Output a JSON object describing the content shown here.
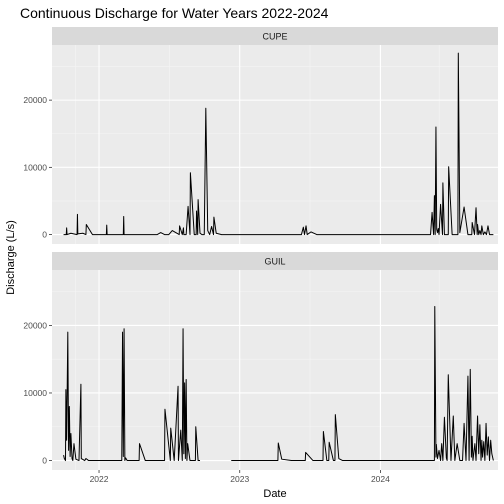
{
  "chart_data": {
    "type": "line",
    "title": "Continuous Discharge for Water Years 2022-2024",
    "xlabel": "Date",
    "ylabel": "Discharge (L/s)",
    "xlim": [
      "2021-09-01",
      "2024-11-01"
    ],
    "ylim": [
      -1400,
      28200
    ],
    "x_ticks": [
      {
        "value": "2022-01-01",
        "label": "2022"
      },
      {
        "value": "2023-01-01",
        "label": "2023"
      },
      {
        "value": "2024-01-01",
        "label": "2024"
      }
    ],
    "y_ticks": [
      {
        "value": 0,
        "label": "0"
      },
      {
        "value": 10000,
        "label": "10000"
      },
      {
        "value": 20000,
        "label": "20000"
      }
    ],
    "grid": true,
    "line_color": "#000000",
    "panel_background": "#ebebeb",
    "strip_background": "#d9d9d9",
    "facets": [
      {
        "name": "CUPE",
        "segments": [
          {
            "dates": [
              "2021-10-01",
              "2021-10-08",
              "2021-10-09",
              "2021-10-10",
              "2021-10-20",
              "2021-11-05",
              "2021-11-06",
              "2021-11-07",
              "2021-11-20",
              "2021-11-28",
              "2021-11-29",
              "2021-12-15",
              "2022-01-20",
              "2022-01-21",
              "2022-01-22",
              "2022-02-10",
              "2022-03-05",
              "2022-03-06",
              "2022-03-07",
              "2022-03-20",
              "2022-05-01",
              "2022-06-01",
              "2022-06-10",
              "2022-06-20",
              "2022-07-01",
              "2022-07-10",
              "2022-07-28",
              "2022-07-29",
              "2022-08-05",
              "2022-08-08",
              "2022-08-09",
              "2022-08-15",
              "2022-08-20",
              "2022-08-25",
              "2022-08-26",
              "2022-09-05",
              "2022-09-10",
              "2022-09-11",
              "2022-09-14",
              "2022-09-15",
              "2022-09-20",
              "2022-09-25",
              "2022-10-01",
              "2022-10-05",
              "2022-10-10",
              "2022-10-15",
              "2022-10-20",
              "2022-10-25",
              "2022-10-26",
              "2022-11-01",
              "2022-11-15",
              "2022-12-01",
              "2022-12-15",
              "2023-01-15",
              "2023-02-15",
              "2023-03-15",
              "2023-04-15",
              "2023-05-15",
              "2023-06-10",
              "2023-06-15",
              "2023-06-18",
              "2023-06-22",
              "2023-06-25",
              "2023-07-05",
              "2023-07-20",
              "2023-08-15",
              "2023-09-15",
              "2023-10-15",
              "2023-11-15",
              "2023-12-15",
              "2024-01-15",
              "2024-02-15",
              "2024-03-15",
              "2024-04-20",
              "2024-05-10",
              "2024-05-14",
              "2024-05-18",
              "2024-05-20",
              "2024-05-22",
              "2024-05-24",
              "2024-05-26",
              "2024-05-28",
              "2024-05-30",
              "2024-06-01",
              "2024-06-05",
              "2024-06-10",
              "2024-06-11",
              "2024-06-15",
              "2024-06-25",
              "2024-06-26",
              "2024-07-05",
              "2024-07-20",
              "2024-07-21",
              "2024-07-25",
              "2024-08-05",
              "2024-08-15",
              "2024-08-25",
              "2024-08-26",
              "2024-09-01",
              "2024-09-05",
              "2024-09-08",
              "2024-09-09",
              "2024-09-12",
              "2024-09-15",
              "2024-09-18",
              "2024-09-20",
              "2024-09-24",
              "2024-09-28",
              "2024-10-02",
              "2024-10-06",
              "2024-10-10",
              "2024-10-14",
              "2024-10-20"
            ],
            "values": [
              0,
              0,
              1000,
              0,
              200,
              0,
              3000,
              100,
              200,
              0,
              1500,
              0,
              0,
              1400,
              0,
              0,
              0,
              2700,
              0,
              0,
              0,
              0,
              300,
              0,
              0,
              600,
              0,
              1300,
              0,
              1000,
              0,
              0,
              4200,
              0,
              9200,
              0,
              0,
              3500,
              0,
              5200,
              200,
              0,
              0,
              18800,
              600,
              0,
              1200,
              0,
              2600,
              200,
              0,
              0,
              0,
              0,
              0,
              0,
              0,
              0,
              0,
              1100,
              0,
              1300,
              0,
              400,
              0,
              0,
              0,
              0,
              0,
              0,
              0,
              0,
              0,
              0,
              0,
              3300,
              0,
              5800,
              0,
              16000,
              800,
              300,
              900,
              0,
              4500,
              0,
              7700,
              0,
              0,
              10100,
              0,
              0,
              27000,
              300,
              4100,
              0,
              0,
              1800,
              0,
              4000,
              0,
              1500,
              0,
              600,
              0,
              1300,
              0,
              400,
              0,
              1300,
              0,
              0,
              0
            ]
          }
        ]
      },
      {
        "name": "GUIL",
        "segments": [
          {
            "dates": [
              "2021-10-01",
              "2021-10-03",
              "2021-10-06",
              "2021-10-07",
              "2021-10-09",
              "2021-10-12",
              "2021-10-14",
              "2021-10-16",
              "2021-10-18",
              "2021-10-20",
              "2021-10-23",
              "2021-10-25",
              "2021-10-28",
              "2021-11-02",
              "2021-11-10",
              "2021-11-15",
              "2021-11-16",
              "2021-11-25",
              "2021-11-28",
              "2021-12-05",
              "2022-01-10",
              "2022-02-15",
              "2022-03-01",
              "2022-03-03",
              "2022-03-05",
              "2022-03-07",
              "2022-03-09",
              "2022-03-11",
              "2022-03-15",
              "2022-04-01",
              "2022-04-15",
              "2022-04-16",
              "2022-05-01",
              "2022-05-20",
              "2022-06-20",
              "2022-06-21",
              "2022-07-05",
              "2022-07-06",
              "2022-07-15",
              "2022-07-25",
              "2022-07-26",
              "2022-08-01",
              "2022-08-05",
              "2022-08-07",
              "2022-08-09",
              "2022-08-11",
              "2022-08-13",
              "2022-08-15",
              "2022-08-17",
              "2022-08-19",
              "2022-08-25",
              "2022-09-05",
              "2022-09-08",
              "2022-09-09",
              "2022-09-15",
              "2022-09-20"
            ],
            "values": [
              800,
              300,
              0,
              10500,
              3000,
              19000,
              1500,
              8000,
              600,
              4000,
              300,
              0,
              2500,
              200,
              0,
              11300,
              300,
              0,
              300,
              0,
              0,
              0,
              0,
              19000,
              600,
              19500,
              0,
              400,
              0,
              0,
              0,
              2500,
              0,
              0,
              0,
              7600,
              0,
              4800,
              0,
              11000,
              0,
              4500,
              0,
              19500,
              1000,
              11500,
              300,
              12000,
              0,
              2500,
              0,
              0,
              0,
              5000,
              0,
              0
            ]
          },
          {
            "dates": [
              "2022-12-10",
              "2023-01-15",
              "2023-02-15",
              "2023-03-15",
              "2023-04-10",
              "2023-04-11",
              "2023-04-20",
              "2023-05-15",
              "2023-06-10",
              "2023-06-20",
              "2023-06-21",
              "2023-07-10",
              "2023-07-25",
              "2023-08-05",
              "2023-08-06",
              "2023-08-15",
              "2023-08-20",
              "2023-08-21",
              "2023-09-01",
              "2023-09-05",
              "2023-09-06",
              "2023-09-15",
              "2023-09-25",
              "2023-10-05",
              "2023-10-15",
              "2023-11-15",
              "2023-12-15",
              "2024-01-15",
              "2024-02-15",
              "2024-03-15",
              "2024-04-10",
              "2024-05-15",
              "2024-05-20",
              "2024-05-21",
              "2024-05-24",
              "2024-05-25",
              "2024-05-28",
              "2024-06-01",
              "2024-06-05",
              "2024-06-08",
              "2024-06-11",
              "2024-06-15",
              "2024-06-20",
              "2024-06-22",
              "2024-06-25",
              "2024-07-02",
              "2024-07-08",
              "2024-07-12",
              "2024-07-18",
              "2024-07-25",
              "2024-08-01",
              "2024-08-05",
              "2024-08-10",
              "2024-08-15",
              "2024-08-18",
              "2024-08-21",
              "2024-08-24",
              "2024-08-26",
              "2024-08-28",
              "2024-09-02",
              "2024-09-05",
              "2024-09-09",
              "2024-09-12",
              "2024-09-15",
              "2024-09-18",
              "2024-09-20",
              "2024-09-22",
              "2024-09-25",
              "2024-09-28",
              "2024-10-01",
              "2024-10-04",
              "2024-10-07",
              "2024-10-10",
              "2024-10-13",
              "2024-10-16",
              "2024-10-20"
            ],
            "values": [
              0,
              0,
              0,
              0,
              0,
              2600,
              200,
              0,
              0,
              0,
              1200,
              0,
              0,
              0,
              4300,
              0,
              0,
              2700,
              0,
              0,
              6800,
              300,
              0,
              0,
              0,
              0,
              0,
              0,
              0,
              0,
              0,
              0,
              0,
              22800,
              500,
              2400,
              300,
              1500,
              0,
              2500,
              0,
              6400,
              400,
              0,
              12700,
              0,
              6600,
              0,
              2500,
              0,
              0,
              5500,
              0,
              12500,
              0,
              13500,
              500,
              3600,
              0,
              2500,
              0,
              6600,
              1000,
              5300,
              0,
              3000,
              500,
              2800,
              0,
              5500,
              800,
              3500,
              0,
              3000,
              1000,
              0
            ]
          }
        ]
      }
    ]
  }
}
